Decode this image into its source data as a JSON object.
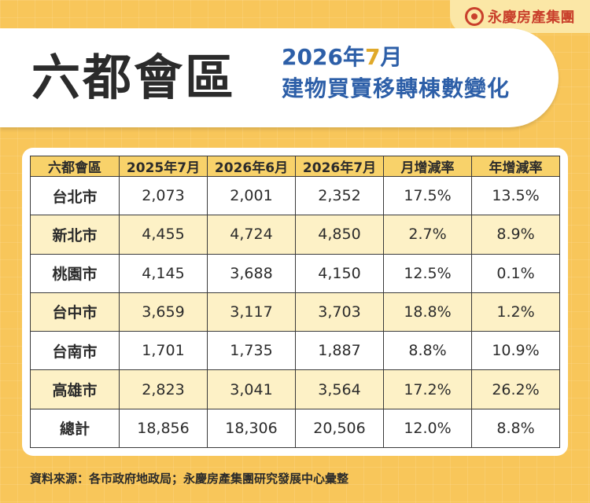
{
  "logo": {
    "text": "永慶房產集團",
    "icon": "yongqing-logo-icon",
    "color": "#c9402c"
  },
  "header": {
    "title": "六都會區",
    "subtitle_year": "2026年",
    "subtitle_month": "7",
    "subtitle_month_suffix": "月",
    "subtitle_line2": "建物買賣移轉棟數變化"
  },
  "colors": {
    "background": "#f8c65a",
    "header_row": "#f8d26a",
    "alt_row": "#fdf1c6",
    "subtitle": "#2d5fa8",
    "accent": "#e0a92a"
  },
  "chart_data": {
    "type": "table",
    "columns": [
      "六都會區",
      "2025年7月",
      "2026年6月",
      "2026年7月",
      "月增減率",
      "年增減率"
    ],
    "rows": [
      [
        "台北市",
        "2,073",
        "2,001",
        "2,352",
        "17.5%",
        "13.5%"
      ],
      [
        "新北市",
        "4,455",
        "4,724",
        "4,850",
        "2.7%",
        "8.9%"
      ],
      [
        "桃園市",
        "4,145",
        "3,688",
        "4,150",
        "12.5%",
        "0.1%"
      ],
      [
        "台中市",
        "3,659",
        "3,117",
        "3,703",
        "18.8%",
        "1.2%"
      ],
      [
        "台南市",
        "1,701",
        "1,735",
        "1,887",
        "8.8%",
        "10.9%"
      ],
      [
        "高雄市",
        "2,823",
        "3,041",
        "3,564",
        "17.2%",
        "26.2%"
      ],
      [
        "總計",
        "18,856",
        "18,306",
        "20,506",
        "12.0%",
        "8.8%"
      ]
    ]
  },
  "footer": {
    "source": "資料來源：各市政府地政局；永慶房產集團研究發展中心彙整"
  }
}
